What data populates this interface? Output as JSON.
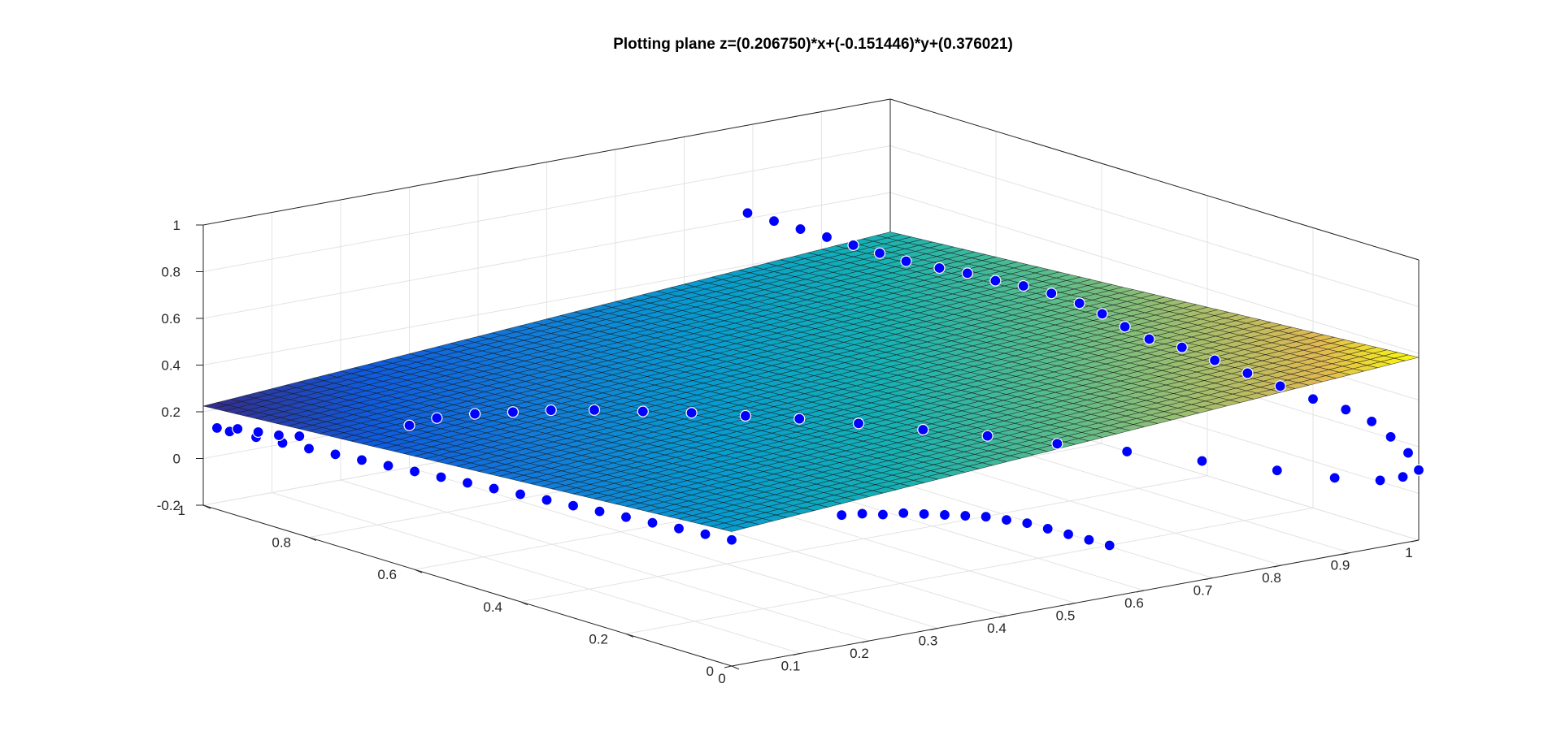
{
  "chart_data": {
    "type": "surface3d+scatter3d",
    "title": "Plotting plane z=(0.206750)*x+(-0.151446)*y+(0.376021)",
    "plane": {
      "a": 0.20675,
      "b": -0.151446,
      "c": 0.376021,
      "mesh": 50,
      "colormap": "parula"
    },
    "xlim": [
      0,
      1
    ],
    "ylim": [
      0,
      1
    ],
    "zlim": [
      -0.2,
      1
    ],
    "x_ticks": [
      "0",
      "0.1",
      "0.2",
      "0.3",
      "0.4",
      "0.5",
      "0.6",
      "0.7",
      "0.8",
      "0.9",
      "1"
    ],
    "x_tick_values": [
      0,
      0.1,
      0.2,
      0.3,
      0.4,
      0.5,
      0.6,
      0.7,
      0.8,
      0.9,
      1
    ],
    "y_ticks": [
      "0",
      "0.2",
      "0.4",
      "0.6",
      "0.8",
      "1"
    ],
    "y_tick_values": [
      0,
      0.2,
      0.4,
      0.6,
      0.8,
      1
    ],
    "z_ticks": [
      "-0.2",
      "0",
      "0.2",
      "0.4",
      "0.6",
      "0.8",
      "1"
    ],
    "z_tick_values": [
      -0.2,
      0,
      0.2,
      0.4,
      0.6,
      0.8,
      1
    ],
    "grid": true,
    "box": true,
    "scatter": {
      "marker": "circle",
      "face_color": "#0000FF",
      "edge_color": "#FFFFFF",
      "points": [
        [
          1.0,
          0.0,
          0.1
        ],
        [
          1.0,
          0.02,
          0.16
        ],
        [
          0.99,
          0.04,
          0.22
        ],
        [
          0.97,
          0.05,
          0.29
        ],
        [
          0.94,
          0.06,
          0.35
        ],
        [
          0.9,
          0.07,
          0.41
        ],
        [
          0.86,
          0.08,
          0.48
        ],
        [
          0.82,
          0.09,
          0.55
        ],
        [
          0.78,
          0.1,
          0.62
        ],
        [
          0.74,
          0.11,
          0.69
        ],
        [
          0.7,
          0.12,
          0.74
        ],
        [
          0.68,
          0.14,
          0.79
        ],
        [
          0.67,
          0.17,
          0.83
        ],
        [
          0.66,
          0.2,
          0.86
        ],
        [
          0.65,
          0.24,
          0.88
        ],
        [
          0.64,
          0.28,
          0.89
        ],
        [
          0.63,
          0.32,
          0.89
        ],
        [
          0.62,
          0.36,
          0.9
        ],
        [
          0.61,
          0.4,
          0.9
        ],
        [
          0.6,
          0.45,
          0.9
        ],
        [
          0.6,
          0.5,
          0.9
        ],
        [
          0.6,
          0.55,
          0.9
        ],
        [
          0.6,
          0.6,
          0.9
        ],
        [
          0.6,
          0.65,
          0.9
        ],
        [
          0.6,
          0.7,
          0.9
        ],
        [
          0.6,
          0.75,
          0.9
        ],
        [
          0.55,
          0.0,
          0.02
        ],
        [
          0.52,
          0.0,
          0.06
        ],
        [
          0.49,
          0.0,
          0.1
        ],
        [
          0.46,
          0.0,
          0.14
        ],
        [
          0.43,
          0.0,
          0.18
        ],
        [
          0.4,
          0.0,
          0.21
        ],
        [
          0.37,
          0.0,
          0.24
        ],
        [
          0.34,
          0.0,
          0.26
        ],
        [
          0.31,
          0.0,
          0.28
        ],
        [
          0.28,
          0.0,
          0.3
        ],
        [
          0.25,
          0.0,
          0.32
        ],
        [
          0.22,
          0.0,
          0.33
        ],
        [
          0.19,
          0.0,
          0.35
        ],
        [
          0.16,
          0.0,
          0.36
        ],
        [
          0.0,
          0.0,
          0.34
        ],
        [
          0.0,
          0.05,
          0.33
        ],
        [
          0.0,
          0.1,
          0.32
        ],
        [
          0.0,
          0.15,
          0.31
        ],
        [
          0.0,
          0.2,
          0.3
        ],
        [
          0.0,
          0.25,
          0.29
        ],
        [
          0.0,
          0.3,
          0.28
        ],
        [
          0.0,
          0.35,
          0.27
        ],
        [
          0.0,
          0.4,
          0.26
        ],
        [
          0.0,
          0.45,
          0.25
        ],
        [
          0.0,
          0.5,
          0.24
        ],
        [
          0.0,
          0.55,
          0.23
        ],
        [
          0.0,
          0.6,
          0.22
        ],
        [
          0.0,
          0.65,
          0.21
        ],
        [
          0.0,
          0.7,
          0.2
        ],
        [
          0.0,
          0.75,
          0.19
        ],
        [
          0.0,
          0.8,
          0.18
        ],
        [
          0.0,
          0.85,
          0.17
        ],
        [
          0.0,
          0.9,
          0.16
        ],
        [
          0.0,
          0.95,
          0.15
        ],
        [
          0.02,
          1.0,
          0.12
        ],
        [
          0.05,
          1.0,
          0.1
        ],
        [
          0.08,
          1.0,
          0.07
        ],
        [
          0.11,
          1.0,
          0.04
        ],
        [
          0.14,
          1.0,
          0.02
        ],
        [
          0.3,
          1.0,
          -0.02
        ],
        [
          0.34,
          1.0,
          -0.01
        ],
        [
          0.38,
          0.98,
          0.0
        ],
        [
          0.42,
          0.96,
          0.0
        ],
        [
          0.46,
          0.94,
          0.0
        ],
        [
          0.5,
          0.91,
          0.0
        ],
        [
          0.54,
          0.87,
          0.0
        ],
        [
          0.58,
          0.83,
          0.0
        ],
        [
          0.62,
          0.78,
          0.0
        ],
        [
          0.66,
          0.73,
          0.0
        ],
        [
          0.7,
          0.67,
          0.0
        ],
        [
          0.74,
          0.6,
          0.0
        ],
        [
          0.78,
          0.53,
          0.0
        ],
        [
          0.82,
          0.45,
          0.0
        ],
        [
          0.86,
          0.37,
          0.0
        ],
        [
          0.9,
          0.28,
          0.0
        ],
        [
          0.94,
          0.19,
          0.0
        ],
        [
          0.97,
          0.12,
          0.0
        ],
        [
          0.99,
          0.06,
          0.02
        ],
        [
          1.0,
          0.03,
          0.05
        ]
      ]
    }
  }
}
